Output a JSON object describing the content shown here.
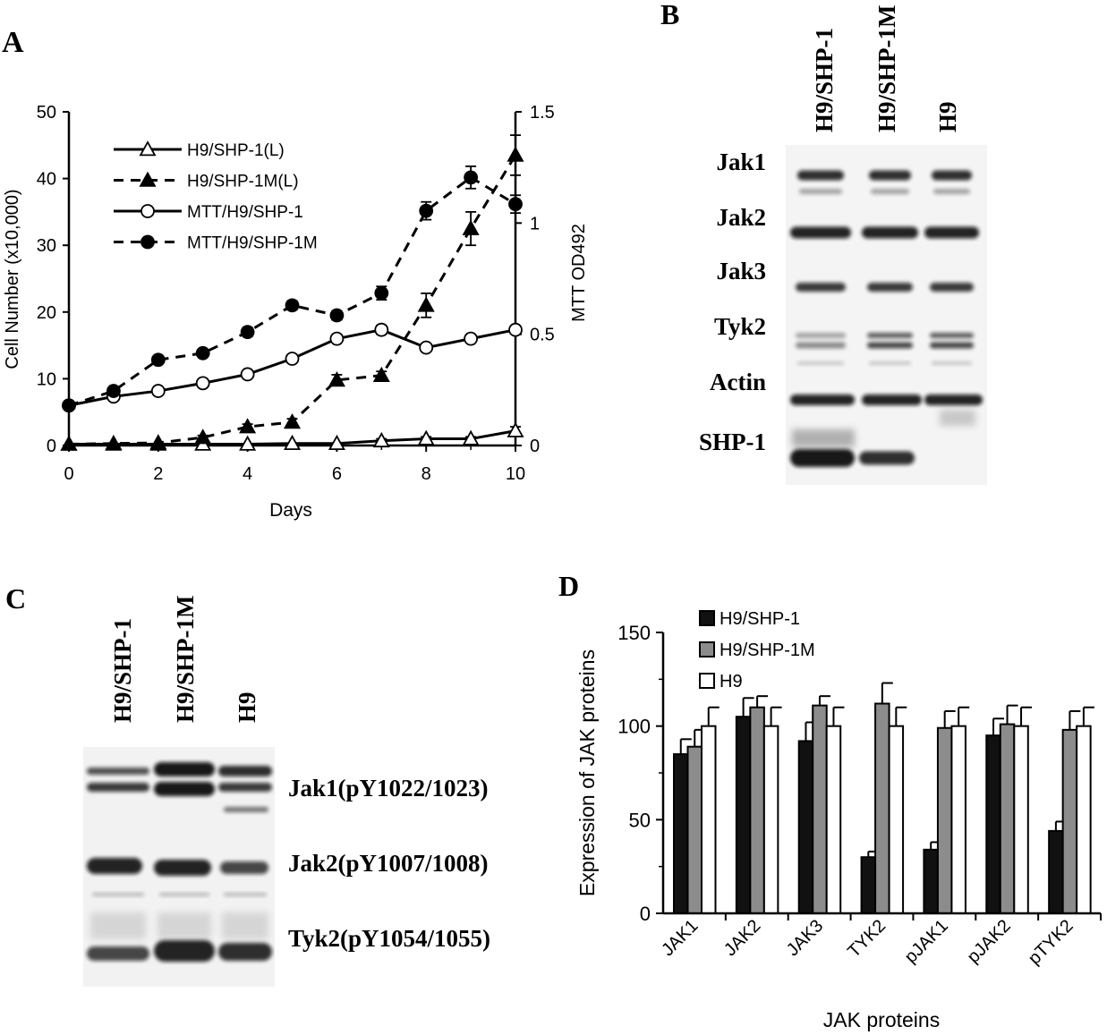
{
  "panel_labels": {
    "a": "A",
    "b": "B",
    "c": "C",
    "d": "D"
  },
  "chart_data": [
    {
      "panel": "A",
      "type": "line",
      "xlabel": "Days",
      "ylabel": "Cell Number (x10,000)",
      "y2label": "MTT OD492",
      "xlim": [
        0,
        10
      ],
      "ylim": [
        0,
        50
      ],
      "y2lim": [
        0,
        1.5
      ],
      "xticks": [
        "0",
        "2",
        "4",
        "6",
        "8",
        "10"
      ],
      "yticks": [
        "0",
        "10",
        "20",
        "30",
        "40",
        "50"
      ],
      "y2ticks": [
        "0",
        "0.5",
        "1",
        "1.5"
      ],
      "legend_position": "top-left",
      "x": [
        0,
        1,
        2,
        3,
        4,
        5,
        6,
        7,
        8,
        9,
        10
      ],
      "series": [
        {
          "name": "H9/SHP-1(L)",
          "axis": "left",
          "line": "solid",
          "marker": "open-triangle",
          "values": [
            0.2,
            0.2,
            0.2,
            0.2,
            0.2,
            0.3,
            0.3,
            0.7,
            1.0,
            1.0,
            2.2
          ],
          "errors": [
            0,
            0,
            0,
            0,
            0,
            0,
            0,
            0.3,
            0.3,
            0.3,
            0.6
          ]
        },
        {
          "name": "H9/SHP-1M(L)",
          "axis": "left",
          "line": "dashed",
          "marker": "filled-triangle",
          "values": [
            0.2,
            0.3,
            0.4,
            1.2,
            2.8,
            3.5,
            9.8,
            10.5,
            21.0,
            32.5,
            43.5
          ],
          "errors": [
            0,
            0,
            0,
            0.3,
            0.4,
            0.5,
            0.8,
            0.6,
            1.8,
            2.5,
            3.0
          ]
        },
        {
          "name": "MTT/H9/SHP-1",
          "axis": "right",
          "line": "solid",
          "marker": "open-circle",
          "values": [
            0.18,
            0.22,
            0.245,
            0.28,
            0.32,
            0.39,
            0.48,
            0.52,
            0.44,
            0.48,
            0.52
          ],
          "errors": [
            0,
            0,
            0,
            0,
            0,
            0,
            0.015,
            0.02,
            0.015,
            0.015,
            0.015
          ]
        },
        {
          "name": "MTT/H9/SHP-1M",
          "axis": "right",
          "line": "dashed",
          "marker": "filled-circle",
          "values": [
            0.18,
            0.245,
            0.385,
            0.415,
            0.51,
            0.63,
            0.585,
            0.685,
            1.055,
            1.205,
            1.085
          ],
          "errors": [
            0,
            0,
            0.015,
            0.015,
            0.02,
            0.02,
            0.02,
            0.03,
            0.04,
            0.05,
            0.04
          ]
        }
      ]
    },
    {
      "panel": "D",
      "type": "bar",
      "xlabel": "JAK proteins",
      "ylabel": "Expression of JAK proteins",
      "ylim": [
        0,
        150
      ],
      "yticks": [
        "0",
        "50",
        "100",
        "150"
      ],
      "legend_position": "top-left",
      "categories": [
        "JAK1",
        "JAK2",
        "JAK3",
        "TYK2",
        "pJAK1",
        "pJAK2",
        "pTYK2"
      ],
      "series": [
        {
          "name": "H9/SHP-1",
          "color": "#111111",
          "values": [
            85,
            105,
            92,
            30,
            34,
            95,
            44
          ],
          "errors": [
            8,
            10,
            10,
            3,
            4,
            9,
            5
          ]
        },
        {
          "name": "H9/SHP-1M",
          "color": "#8c8c8c",
          "values": [
            89,
            110,
            111,
            112,
            99,
            101,
            98
          ],
          "errors": [
            9,
            6,
            5,
            11,
            9,
            10,
            10
          ]
        },
        {
          "name": "H9",
          "color": "#ffffff",
          "values": [
            100,
            100,
            100,
            100,
            100,
            100,
            100
          ],
          "errors": [
            10,
            10,
            10,
            10,
            10,
            10,
            10
          ]
        }
      ]
    }
  ],
  "blot_b": {
    "lanes": [
      "H9/SHP-1",
      "H9/SHP-1M",
      "H9"
    ],
    "rows": [
      "Jak1",
      "Jak2",
      "Jak3",
      "Tyk2",
      "Actin",
      "SHP-1"
    ]
  },
  "blot_c": {
    "lanes": [
      "H9/SHP-1",
      "H9/SHP-1M",
      "H9"
    ],
    "rows": [
      "Jak1(pY1022/1023)",
      "Jak2(pY1007/1008)",
      "Tyk2(pY1054/1055)"
    ]
  }
}
